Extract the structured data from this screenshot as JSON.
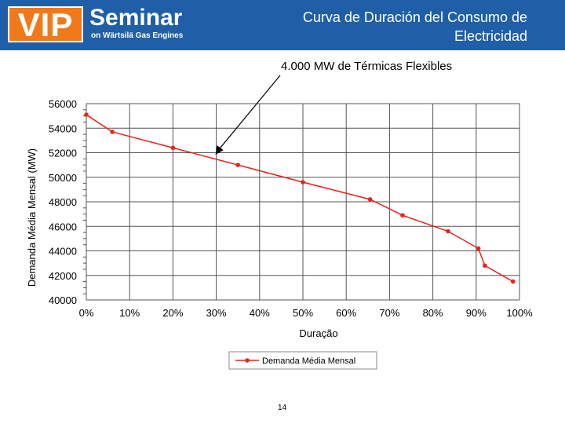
{
  "header": {
    "logo_vip": "VIP",
    "logo_seminar": "Seminar",
    "logo_sub": "on Wärtsilä Gas Engines",
    "title": "Curva de Duración del Consumo de Electricidad",
    "background_color": "#1f5fa7",
    "logo_color": "#f07a1a"
  },
  "annotation": "4.000 MW de Térmicas Flexibles",
  "page_number": "14",
  "chart_data": {
    "type": "line",
    "xlabel": "Duração",
    "ylabel": "Demanda Média Mensal (MW)",
    "xlim": [
      0,
      100
    ],
    "ylim": [
      40000,
      56000
    ],
    "x_ticks": [
      "0%",
      "10%",
      "20%",
      "30%",
      "40%",
      "50%",
      "60%",
      "70%",
      "80%",
      "90%",
      "100%"
    ],
    "y_ticks": [
      "40000",
      "42000",
      "44000",
      "46000",
      "48000",
      "50000",
      "52000",
      "54000",
      "56000"
    ],
    "grid": true,
    "legend_position": "bottom-center",
    "series": [
      {
        "name": "Demanda Média Mensal",
        "color": "#e8231a",
        "x": [
          0,
          6,
          20,
          35,
          50,
          65.5,
          73,
          83.5,
          90.5,
          92,
          98.5
        ],
        "y": [
          55100,
          53700,
          52400,
          51000,
          49600,
          48200,
          46900,
          45600,
          44200,
          42800,
          41500
        ]
      }
    ],
    "annotation_arrow": {
      "label": "4.000 MW de Térmicas Flexibles",
      "x": 30,
      "y": 51900
    }
  }
}
